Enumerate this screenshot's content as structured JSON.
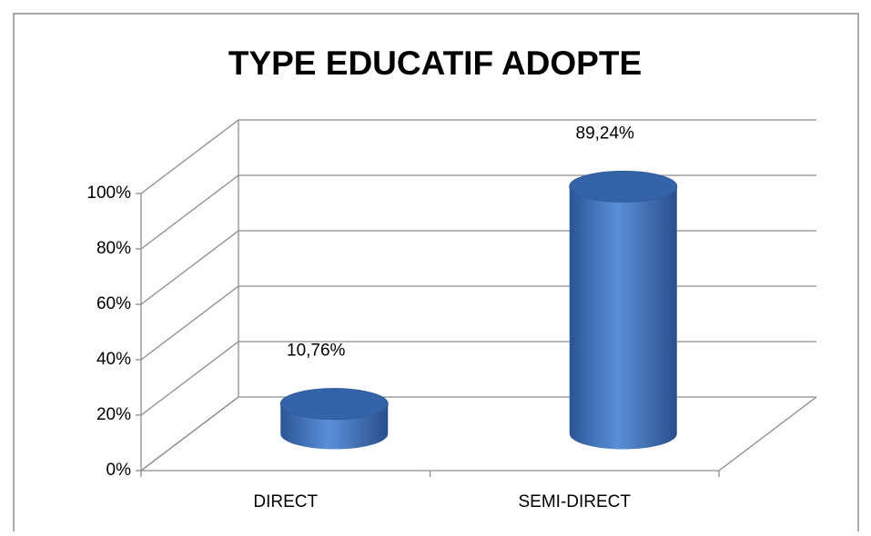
{
  "chart_data": {
    "type": "bar3d",
    "title": "TYPE EDUCATIF ADOPTE",
    "categories": [
      "DIRECT",
      "SEMI-DIRECT"
    ],
    "values": [
      10.76,
      89.24
    ],
    "value_labels": [
      "10,76%",
      "89,24%"
    ],
    "color": "#4a7cc4",
    "ylim": [
      0,
      100
    ],
    "yticks": [
      {
        "value": 0,
        "label": "0%"
      },
      {
        "value": 20,
        "label": "20%"
      },
      {
        "value": 40,
        "label": "40%"
      },
      {
        "value": 60,
        "label": "60%"
      },
      {
        "value": 80,
        "label": "80%"
      },
      {
        "value": 100,
        "label": "100%"
      }
    ],
    "grid": true
  }
}
